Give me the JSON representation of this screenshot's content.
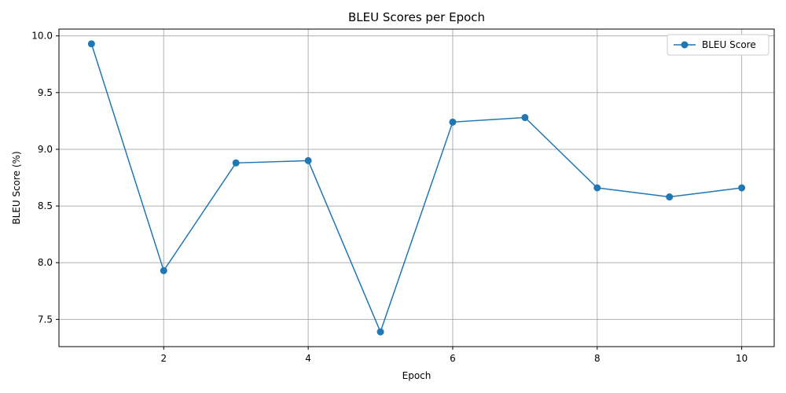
{
  "chart_data": {
    "type": "line",
    "title": "BLEU Scores per Epoch",
    "xlabel": "Epoch",
    "ylabel": "BLEU Score (%)",
    "x": [
      1,
      2,
      3,
      4,
      5,
      6,
      7,
      8,
      9,
      10
    ],
    "series": [
      {
        "name": "BLEU Score",
        "values": [
          9.93,
          7.93,
          8.88,
          8.9,
          7.39,
          9.24,
          9.28,
          8.66,
          8.58,
          8.66
        ],
        "color": "#1f77b4",
        "marker": "circle"
      }
    ],
    "xlim": [
      0.55,
      10.45
    ],
    "ylim": [
      7.26,
      10.06
    ],
    "xticks": [
      2,
      4,
      6,
      8,
      10
    ],
    "yticks": [
      7.5,
      8.0,
      8.5,
      9.0,
      9.5,
      10.0
    ],
    "xtick_labels": [
      "2",
      "4",
      "6",
      "8",
      "10"
    ],
    "ytick_labels": [
      "7.5",
      "8.0",
      "8.5",
      "9.0",
      "9.5",
      "10.0"
    ],
    "grid": true,
    "legend_position": "top-right"
  }
}
